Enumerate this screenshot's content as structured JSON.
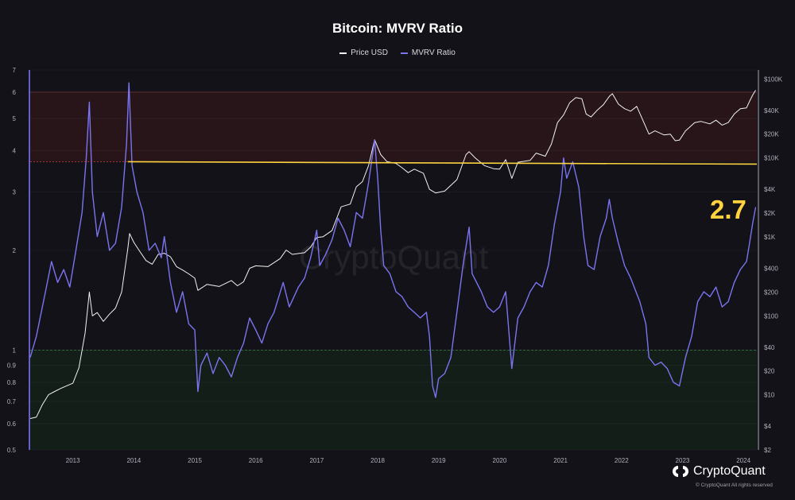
{
  "title": "Bitcoin: MVRV Ratio",
  "legend": {
    "price_label": "Price USD",
    "mvrv_label": "MVRV Ratio"
  },
  "callout": "2.7",
  "watermark": "CryptoQuant",
  "logo_text": "CryptoQuant",
  "copyright": "© CryptoQuant All rights reserved",
  "colors": {
    "background": "#131218",
    "price_line": "#f2f2f2",
    "mvrv_line": "#7a74f0",
    "high_zone": "#2a1619",
    "low_zone": "#142019",
    "threshold_line": "#ffd23f",
    "callout": "#ffd23f"
  },
  "chart_data": {
    "type": "line",
    "x_ticks": [
      "2013",
      "2014",
      "2015",
      "2016",
      "2017",
      "2018",
      "2019",
      "2020",
      "2021",
      "2022",
      "2023",
      "2024"
    ],
    "left_axis": {
      "scale": "log",
      "ticks": [
        "7",
        "6",
        "5",
        "4",
        "3",
        "2",
        "1",
        "0.9",
        "0.8",
        "0.7",
        "0.6",
        "0.5"
      ],
      "range": [
        0.5,
        7
      ]
    },
    "right_axis": {
      "scale": "log",
      "ticks": [
        "$100K",
        "$40K",
        "$20K",
        "$10K",
        "$4K",
        "$2K",
        "$1K",
        "$400",
        "$200",
        "$100",
        "$40",
        "$20",
        "$10",
        "$4",
        "$2"
      ],
      "range": [
        2,
        130000
      ]
    },
    "zones": [
      {
        "name": "overvalued",
        "from": 3.7,
        "to": 6
      },
      {
        "name": "undervalued",
        "from": 0.5,
        "to": 1
      }
    ],
    "threshold": 3.7,
    "series": [
      {
        "name": "MVRV Ratio",
        "axis": "left",
        "points": [
          [
            2012.3,
            0.95
          ],
          [
            2012.4,
            1.1
          ],
          [
            2012.55,
            1.5
          ],
          [
            2012.65,
            1.85
          ],
          [
            2012.75,
            1.6
          ],
          [
            2012.85,
            1.75
          ],
          [
            2012.95,
            1.55
          ],
          [
            2013.05,
            2.0
          ],
          [
            2013.15,
            2.6
          ],
          [
            2013.22,
            3.8
          ],
          [
            2013.27,
            5.6
          ],
          [
            2013.32,
            3.0
          ],
          [
            2013.4,
            2.2
          ],
          [
            2013.5,
            2.6
          ],
          [
            2013.6,
            2.0
          ],
          [
            2013.7,
            2.1
          ],
          [
            2013.8,
            2.7
          ],
          [
            2013.88,
            4.2
          ],
          [
            2013.92,
            6.4
          ],
          [
            2013.97,
            3.6
          ],
          [
            2014.05,
            3.0
          ],
          [
            2014.15,
            2.6
          ],
          [
            2014.25,
            2.0
          ],
          [
            2014.35,
            2.1
          ],
          [
            2014.45,
            1.9
          ],
          [
            2014.5,
            2.2
          ],
          [
            2014.6,
            1.6
          ],
          [
            2014.7,
            1.3
          ],
          [
            2014.8,
            1.5
          ],
          [
            2014.9,
            1.2
          ],
          [
            2015.0,
            1.15
          ],
          [
            2015.05,
            0.75
          ],
          [
            2015.1,
            0.9
          ],
          [
            2015.2,
            0.98
          ],
          [
            2015.3,
            0.85
          ],
          [
            2015.4,
            0.95
          ],
          [
            2015.5,
            0.9
          ],
          [
            2015.6,
            0.83
          ],
          [
            2015.7,
            0.95
          ],
          [
            2015.8,
            1.05
          ],
          [
            2015.9,
            1.25
          ],
          [
            2016.0,
            1.15
          ],
          [
            2016.1,
            1.05
          ],
          [
            2016.2,
            1.2
          ],
          [
            2016.3,
            1.3
          ],
          [
            2016.45,
            1.6
          ],
          [
            2016.55,
            1.35
          ],
          [
            2016.7,
            1.55
          ],
          [
            2016.8,
            1.65
          ],
          [
            2016.9,
            1.9
          ],
          [
            2017.0,
            2.3
          ],
          [
            2017.05,
            1.8
          ],
          [
            2017.15,
            1.95
          ],
          [
            2017.25,
            2.15
          ],
          [
            2017.35,
            2.5
          ],
          [
            2017.45,
            2.3
          ],
          [
            2017.55,
            2.05
          ],
          [
            2017.65,
            2.6
          ],
          [
            2017.75,
            2.5
          ],
          [
            2017.85,
            3.2
          ],
          [
            2017.95,
            4.3
          ],
          [
            2018.0,
            3.3
          ],
          [
            2018.05,
            2.3
          ],
          [
            2018.1,
            1.8
          ],
          [
            2018.2,
            1.7
          ],
          [
            2018.3,
            1.5
          ],
          [
            2018.4,
            1.45
          ],
          [
            2018.5,
            1.35
          ],
          [
            2018.6,
            1.3
          ],
          [
            2018.7,
            1.25
          ],
          [
            2018.8,
            1.3
          ],
          [
            2018.85,
            1.1
          ],
          [
            2018.9,
            0.78
          ],
          [
            2018.95,
            0.72
          ],
          [
            2019.0,
            0.82
          ],
          [
            2019.1,
            0.85
          ],
          [
            2019.2,
            0.95
          ],
          [
            2019.3,
            1.3
          ],
          [
            2019.4,
            1.8
          ],
          [
            2019.5,
            2.35
          ],
          [
            2019.55,
            1.7
          ],
          [
            2019.7,
            1.5
          ],
          [
            2019.8,
            1.35
          ],
          [
            2019.9,
            1.3
          ],
          [
            2020.0,
            1.35
          ],
          [
            2020.1,
            1.5
          ],
          [
            2020.2,
            0.88
          ],
          [
            2020.3,
            1.25
          ],
          [
            2020.4,
            1.35
          ],
          [
            2020.5,
            1.5
          ],
          [
            2020.6,
            1.6
          ],
          [
            2020.7,
            1.55
          ],
          [
            2020.8,
            1.8
          ],
          [
            2020.9,
            2.4
          ],
          [
            2021.0,
            3.0
          ],
          [
            2021.05,
            3.8
          ],
          [
            2021.1,
            3.3
          ],
          [
            2021.2,
            3.7
          ],
          [
            2021.3,
            3.1
          ],
          [
            2021.38,
            2.2
          ],
          [
            2021.45,
            1.8
          ],
          [
            2021.55,
            1.75
          ],
          [
            2021.65,
            2.2
          ],
          [
            2021.75,
            2.5
          ],
          [
            2021.8,
            2.85
          ],
          [
            2021.85,
            2.5
          ],
          [
            2021.95,
            2.1
          ],
          [
            2022.05,
            1.8
          ],
          [
            2022.15,
            1.65
          ],
          [
            2022.3,
            1.4
          ],
          [
            2022.4,
            1.2
          ],
          [
            2022.45,
            0.95
          ],
          [
            2022.55,
            0.9
          ],
          [
            2022.65,
            0.92
          ],
          [
            2022.75,
            0.88
          ],
          [
            2022.85,
            0.8
          ],
          [
            2022.95,
            0.78
          ],
          [
            2023.05,
            0.95
          ],
          [
            2023.15,
            1.1
          ],
          [
            2023.25,
            1.4
          ],
          [
            2023.35,
            1.5
          ],
          [
            2023.45,
            1.45
          ],
          [
            2023.55,
            1.55
          ],
          [
            2023.65,
            1.35
          ],
          [
            2023.75,
            1.4
          ],
          [
            2023.85,
            1.6
          ],
          [
            2023.95,
            1.75
          ],
          [
            2024.05,
            1.85
          ],
          [
            2024.1,
            2.1
          ],
          [
            2024.15,
            2.4
          ],
          [
            2024.2,
            2.7
          ]
        ]
      },
      {
        "name": "Price USD",
        "axis": "right",
        "points": [
          [
            2012.3,
            5
          ],
          [
            2012.4,
            5.2
          ],
          [
            2012.5,
            7.5
          ],
          [
            2012.6,
            10
          ],
          [
            2012.7,
            11
          ],
          [
            2012.8,
            12
          ],
          [
            2012.9,
            13
          ],
          [
            2013.0,
            14
          ],
          [
            2013.1,
            22
          ],
          [
            2013.2,
            60
          ],
          [
            2013.27,
            200
          ],
          [
            2013.32,
            100
          ],
          [
            2013.4,
            110
          ],
          [
            2013.5,
            85
          ],
          [
            2013.6,
            105
          ],
          [
            2013.7,
            125
          ],
          [
            2013.8,
            200
          ],
          [
            2013.9,
            700
          ],
          [
            2013.93,
            1100
          ],
          [
            2014.0,
            850
          ],
          [
            2014.1,
            650
          ],
          [
            2014.2,
            500
          ],
          [
            2014.3,
            450
          ],
          [
            2014.4,
            600
          ],
          [
            2014.5,
            620
          ],
          [
            2014.6,
            560
          ],
          [
            2014.7,
            420
          ],
          [
            2014.8,
            380
          ],
          [
            2014.9,
            340
          ],
          [
            2015.0,
            300
          ],
          [
            2015.05,
            210
          ],
          [
            2015.2,
            250
          ],
          [
            2015.4,
            235
          ],
          [
            2015.6,
            280
          ],
          [
            2015.7,
            240
          ],
          [
            2015.8,
            270
          ],
          [
            2015.9,
            400
          ],
          [
            2016.0,
            430
          ],
          [
            2016.2,
            420
          ],
          [
            2016.4,
            530
          ],
          [
            2016.5,
            680
          ],
          [
            2016.6,
            600
          ],
          [
            2016.8,
            630
          ],
          [
            2016.9,
            740
          ],
          [
            2017.0,
            980
          ],
          [
            2017.1,
            1000
          ],
          [
            2017.25,
            1200
          ],
          [
            2017.4,
            2400
          ],
          [
            2017.55,
            2600
          ],
          [
            2017.65,
            4300
          ],
          [
            2017.75,
            5000
          ],
          [
            2017.85,
            8000
          ],
          [
            2017.95,
            17000
          ],
          [
            2018.05,
            11000
          ],
          [
            2018.15,
            9000
          ],
          [
            2018.3,
            8500
          ],
          [
            2018.4,
            7500
          ],
          [
            2018.5,
            6500
          ],
          [
            2018.6,
            7200
          ],
          [
            2018.75,
            6400
          ],
          [
            2018.85,
            4000
          ],
          [
            2018.95,
            3600
          ],
          [
            2019.1,
            3800
          ],
          [
            2019.3,
            5300
          ],
          [
            2019.45,
            11000
          ],
          [
            2019.5,
            12000
          ],
          [
            2019.6,
            10000
          ],
          [
            2019.75,
            8000
          ],
          [
            2019.9,
            7300
          ],
          [
            2020.0,
            7200
          ],
          [
            2020.1,
            9500
          ],
          [
            2020.2,
            5500
          ],
          [
            2020.3,
            8800
          ],
          [
            2020.5,
            9300
          ],
          [
            2020.6,
            11500
          ],
          [
            2020.75,
            10500
          ],
          [
            2020.85,
            15000
          ],
          [
            2020.95,
            28000
          ],
          [
            2021.05,
            35000
          ],
          [
            2021.15,
            50000
          ],
          [
            2021.25,
            58000
          ],
          [
            2021.35,
            56000
          ],
          [
            2021.42,
            36000
          ],
          [
            2021.5,
            33000
          ],
          [
            2021.6,
            40000
          ],
          [
            2021.7,
            47000
          ],
          [
            2021.8,
            60000
          ],
          [
            2021.85,
            65000
          ],
          [
            2021.95,
            48000
          ],
          [
            2022.05,
            42000
          ],
          [
            2022.15,
            39000
          ],
          [
            2022.25,
            45000
          ],
          [
            2022.35,
            30000
          ],
          [
            2022.45,
            20000
          ],
          [
            2022.55,
            22000
          ],
          [
            2022.7,
            19500
          ],
          [
            2022.8,
            20000
          ],
          [
            2022.88,
            16500
          ],
          [
            2022.95,
            16800
          ],
          [
            2023.05,
            22000
          ],
          [
            2023.2,
            28000
          ],
          [
            2023.3,
            29000
          ],
          [
            2023.45,
            27000
          ],
          [
            2023.55,
            30000
          ],
          [
            2023.65,
            26000
          ],
          [
            2023.75,
            28000
          ],
          [
            2023.85,
            36000
          ],
          [
            2023.95,
            42000
          ],
          [
            2024.05,
            43000
          ],
          [
            2024.1,
            52000
          ],
          [
            2024.15,
            62000
          ],
          [
            2024.2,
            72000
          ]
        ]
      }
    ]
  }
}
